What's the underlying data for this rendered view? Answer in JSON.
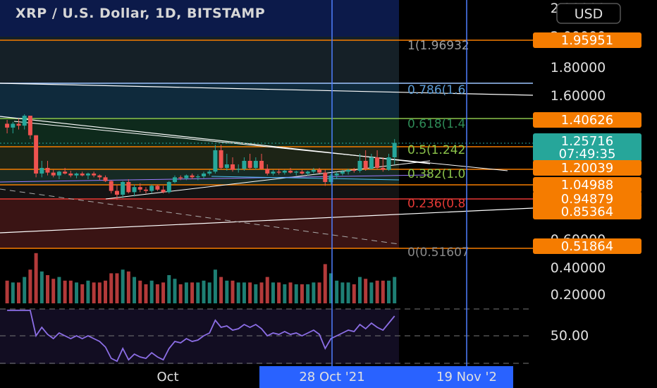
{
  "header": {
    "title": "XRP / U.S. Dollar, 1D, BITSTAMP",
    "currency_button": "USD"
  },
  "colors": {
    "up": "#26a69a",
    "down": "#ef5350",
    "orange": "#f57c00",
    "teal": "#26a69a",
    "blue_line": "#4f7fff",
    "rsi": "#8c6ee6"
  },
  "chart_data": {
    "type": "candlestick",
    "title": "XRP / U.S. Dollar, 1D, BITSTAMP",
    "x_labels": [
      "Oct",
      "28 Oct '21",
      "19 Nov '2"
    ],
    "price_axis_ticks": [
      "2.20000",
      "2.00000",
      "1.80000",
      "1.60000",
      "0.60000",
      "0.40000",
      "0.20000"
    ],
    "price_tags": [
      {
        "label": "1.95951",
        "kind": "orange"
      },
      {
        "label": "1.40626",
        "kind": "orange"
      },
      {
        "label": "1.25716",
        "sub": "07:49:35",
        "kind": "teal"
      },
      {
        "label": "1.20039",
        "kind": "orange"
      },
      {
        "label": "1.04988",
        "kind": "orange"
      },
      {
        "label": "0.94879",
        "kind": "orange"
      },
      {
        "label": "0.85364",
        "kind": "orange"
      },
      {
        "label": "0.51864",
        "kind": "orange"
      }
    ],
    "fib_levels": [
      {
        "ratio": "1",
        "label": "1(1.96932"
      },
      {
        "ratio": "0.786",
        "label": "0.786(1.6"
      },
      {
        "ratio": "0.618",
        "label": "0.618(1.4"
      },
      {
        "ratio": "0.5",
        "label": "0.5(1.242"
      },
      {
        "ratio": "0.382",
        "label": "0.382(1.0"
      },
      {
        "ratio": "0.236",
        "label": "0.236(0.8"
      },
      {
        "ratio": "0",
        "label": "0(0.51607"
      }
    ],
    "candles": [
      [
        1.38,
        1.4,
        1.33,
        1.36
      ],
      [
        1.36,
        1.39,
        1.33,
        1.38
      ],
      [
        1.38,
        1.41,
        1.35,
        1.37
      ],
      [
        1.37,
        1.44,
        1.35,
        1.43
      ],
      [
        1.43,
        1.43,
        1.3,
        1.32
      ],
      [
        1.32,
        1.32,
        1.1,
        1.14
      ],
      [
        1.14,
        1.22,
        1.1,
        1.2
      ],
      [
        1.2,
        1.22,
        1.12,
        1.15
      ],
      [
        1.15,
        1.18,
        1.1,
        1.12
      ],
      [
        1.12,
        1.17,
        1.08,
        1.16
      ],
      [
        1.16,
        1.2,
        1.13,
        1.14
      ],
      [
        1.14,
        1.17,
        1.1,
        1.12
      ],
      [
        1.12,
        1.15,
        1.09,
        1.14
      ],
      [
        1.14,
        1.16,
        1.11,
        1.12
      ],
      [
        1.12,
        1.15,
        1.08,
        1.14
      ],
      [
        1.14,
        1.16,
        1.1,
        1.12
      ],
      [
        1.12,
        1.13,
        1.07,
        1.1
      ],
      [
        1.1,
        1.12,
        1.05,
        1.06
      ],
      [
        1.06,
        1.07,
        0.96,
        0.98
      ],
      [
        0.98,
        1.03,
        0.92,
        0.95
      ],
      [
        0.95,
        1.06,
        0.93,
        1.05
      ],
      [
        1.05,
        1.08,
        0.96,
        0.97
      ],
      [
        0.97,
        1.03,
        0.94,
        1.01
      ],
      [
        1.01,
        1.04,
        0.97,
        0.99
      ],
      [
        0.99,
        1.01,
        0.96,
        0.98
      ],
      [
        0.98,
        1.03,
        0.96,
        1.02
      ],
      [
        1.02,
        1.03,
        0.98,
        0.99
      ],
      [
        0.99,
        1.02,
        0.96,
        0.97
      ],
      [
        0.97,
        1.06,
        0.96,
        1.05
      ],
      [
        1.05,
        1.12,
        1.04,
        1.1
      ],
      [
        1.1,
        1.12,
        1.07,
        1.09
      ],
      [
        1.09,
        1.13,
        1.07,
        1.12
      ],
      [
        1.12,
        1.14,
        1.08,
        1.1
      ],
      [
        1.1,
        1.13,
        1.07,
        1.11
      ],
      [
        1.11,
        1.16,
        1.09,
        1.14
      ],
      [
        1.14,
        1.18,
        1.12,
        1.16
      ],
      [
        1.16,
        1.27,
        1.14,
        1.25
      ],
      [
        1.25,
        1.27,
        1.18,
        1.2
      ],
      [
        1.2,
        1.24,
        1.17,
        1.21
      ],
      [
        1.21,
        1.23,
        1.16,
        1.18
      ],
      [
        1.18,
        1.21,
        1.15,
        1.19
      ],
      [
        1.19,
        1.23,
        1.17,
        1.22
      ],
      [
        1.22,
        1.24,
        1.18,
        1.2
      ],
      [
        1.2,
        1.23,
        1.18,
        1.22
      ],
      [
        1.22,
        1.24,
        1.18,
        1.19
      ],
      [
        1.19,
        1.21,
        1.12,
        1.14
      ],
      [
        1.14,
        1.18,
        1.12,
        1.16
      ],
      [
        1.16,
        1.19,
        1.13,
        1.15
      ],
      [
        1.15,
        1.18,
        1.13,
        1.17
      ],
      [
        1.17,
        1.2,
        1.14,
        1.15
      ],
      [
        1.15,
        1.17,
        1.12,
        1.16
      ],
      [
        1.16,
        1.18,
        1.13,
        1.14
      ],
      [
        1.14,
        1.17,
        1.12,
        1.16
      ],
      [
        1.16,
        1.2,
        1.14,
        1.18
      ],
      [
        1.18,
        1.2,
        1.14,
        1.15
      ],
      [
        1.15,
        1.18,
        1.02,
        1.05
      ],
      [
        1.05,
        1.14,
        1.03,
        1.12
      ],
      [
        1.12,
        1.16,
        1.09,
        1.14
      ],
      [
        1.14,
        1.18,
        1.12,
        1.16
      ],
      [
        1.16,
        1.19,
        1.13,
        1.18
      ],
      [
        1.18,
        1.2,
        1.15,
        1.17
      ],
      [
        1.17,
        1.24,
        1.15,
        1.22
      ],
      [
        1.22,
        1.25,
        1.17,
        1.19
      ],
      [
        1.19,
        1.24,
        1.18,
        1.23
      ],
      [
        1.23,
        1.25,
        1.18,
        1.2
      ],
      [
        1.2,
        1.23,
        1.16,
        1.18
      ],
      [
        1.18,
        1.24,
        1.17,
        1.23
      ],
      [
        1.23,
        1.3,
        1.21,
        1.28
      ]
    ],
    "volume_axis_ticks": [
      "0.40000",
      "0.20000"
    ],
    "rsi_axis_tick": "50.00"
  }
}
